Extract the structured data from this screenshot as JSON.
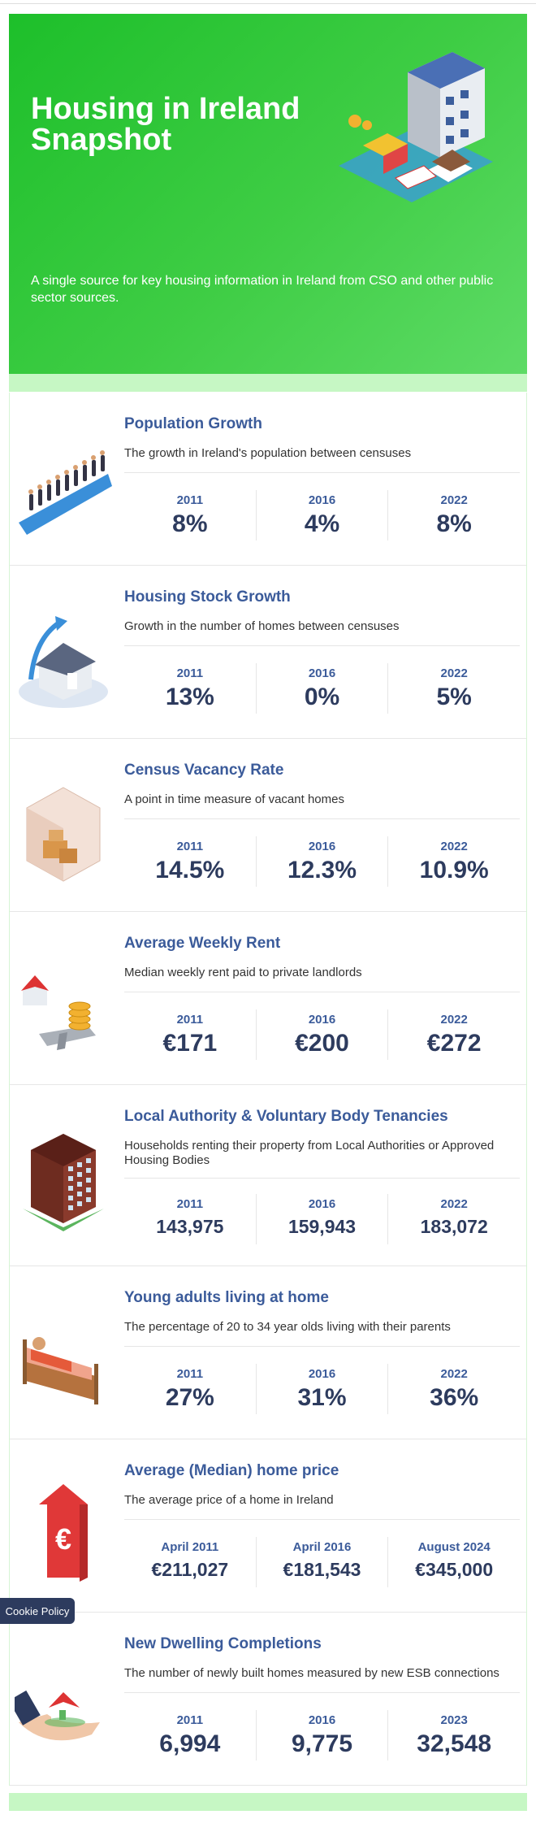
{
  "header": {
    "title": "Housing in Ireland Snapshot",
    "subtitle": "A single source for key housing information in Ireland from CSO and other public sector sources."
  },
  "sections": [
    {
      "title": "Population Growth",
      "description": "The growth in Ireland's population between censuses",
      "stats": [
        {
          "label": "2011",
          "value": "8%"
        },
        {
          "label": "2016",
          "value": "4%"
        },
        {
          "label": "2022",
          "value": "8%"
        }
      ]
    },
    {
      "title": "Housing Stock Growth",
      "description": "Growth in the number of homes between censuses",
      "stats": [
        {
          "label": "2011",
          "value": "13%"
        },
        {
          "label": "2016",
          "value": "0%"
        },
        {
          "label": "2022",
          "value": "5%"
        }
      ]
    },
    {
      "title": "Census Vacancy Rate",
      "description": "A point in time measure of vacant homes",
      "stats": [
        {
          "label": "2011",
          "value": "14.5%"
        },
        {
          "label": "2016",
          "value": "12.3%"
        },
        {
          "label": "2022",
          "value": "10.9%"
        }
      ]
    },
    {
      "title": "Average Weekly Rent",
      "description": "Median weekly rent paid to private landlords",
      "stats": [
        {
          "label": "2011",
          "value": "€171"
        },
        {
          "label": "2016",
          "value": "€200"
        },
        {
          "label": "2022",
          "value": "€272"
        }
      ]
    },
    {
      "title": "Local Authority & Voluntary Body Tenancies",
      "description": "Households renting their property from Local Authorities or Approved Housing Bodies",
      "stats": [
        {
          "label": "2011",
          "value": "143,975"
        },
        {
          "label": "2016",
          "value": "159,943"
        },
        {
          "label": "2022",
          "value": "183,072"
        }
      ]
    },
    {
      "title": "Young adults living at home",
      "description": "The percentage of 20 to 34 year olds living with their parents",
      "stats": [
        {
          "label": "2011",
          "value": "27%"
        },
        {
          "label": "2016",
          "value": "31%"
        },
        {
          "label": "2022",
          "value": "36%"
        }
      ]
    },
    {
      "title": "Average (Median) home price",
      "description": "The average price of a home in Ireland",
      "stats": [
        {
          "label": "April 2011",
          "value": "€211,027"
        },
        {
          "label": "April 2016",
          "value": "€181,543"
        },
        {
          "label": "August 2024",
          "value": "€345,000"
        }
      ]
    },
    {
      "title": "New Dwelling Completions",
      "description": "The number of newly built homes measured by new ESB connections",
      "stats": [
        {
          "label": "2011",
          "value": "6,994"
        },
        {
          "label": "2016",
          "value": "9,775"
        },
        {
          "label": "2023",
          "value": "32,548"
        }
      ]
    }
  ],
  "cookie_button": "Cookie Policy"
}
